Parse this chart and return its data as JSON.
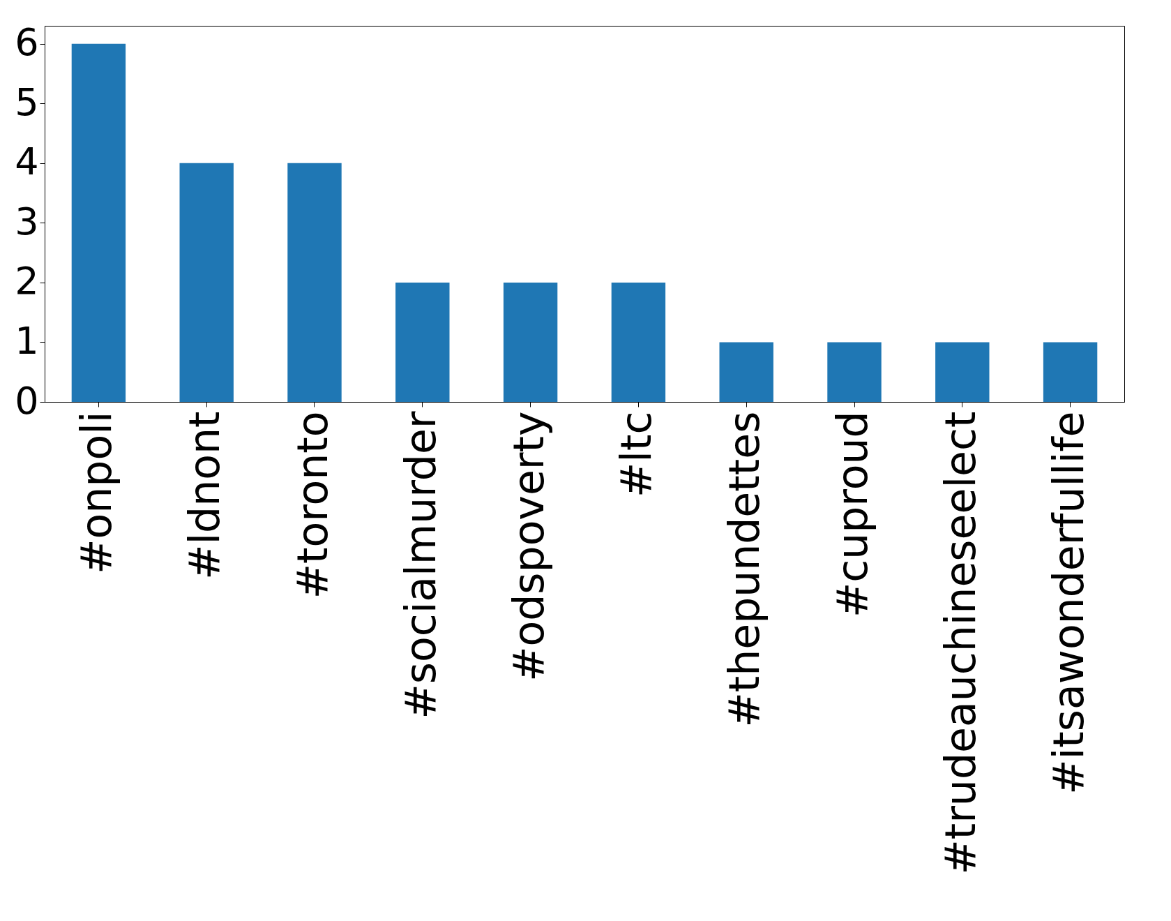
{
  "chart_data": {
    "type": "bar",
    "categories": [
      "#onpoli",
      "#ldnont",
      "#toronto",
      "#socialmurder",
      "#odspoverty",
      "#ltc",
      "#thepundettes",
      "#cuproud",
      "#trudeauchineseelect",
      "#itsawonderfullife"
    ],
    "values": [
      6,
      4,
      4,
      2,
      2,
      2,
      1,
      1,
      1,
      1
    ],
    "color": "#1f77b4",
    "ylim": [
      0,
      6.3
    ],
    "yticks": [
      0,
      1,
      2,
      3,
      4,
      5,
      6
    ],
    "grid": false
  }
}
